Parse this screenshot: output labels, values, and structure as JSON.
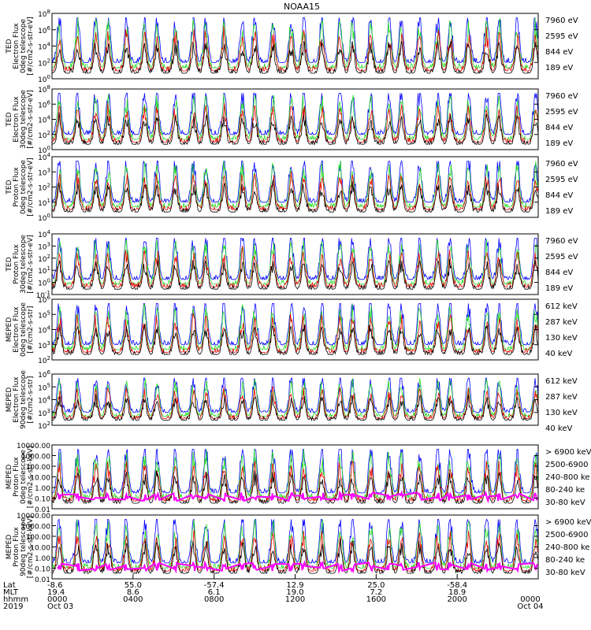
{
  "title": "NOAA15",
  "colors": {
    "black": "#000000",
    "red": "#ee0000",
    "green": "#22dd22",
    "blue": "#0000ff",
    "magenta": "#ff00ff"
  },
  "panels": [
    {
      "ylabel": [
        "TED",
        "Electron Flux",
        "0deg telescope",
        "[#/cm2-s-str-eV]"
      ],
      "yticks": [
        "10^8",
        "10^6",
        "10^4",
        "10^2",
        "10^0"
      ],
      "legend": [
        {
          "text": "7960 eV",
          "color": "black"
        },
        {
          "text": "2595 eV",
          "color": "red"
        },
        {
          "text": "844 eV",
          "color": "green"
        },
        {
          "text": "189 eV",
          "color": "blue"
        }
      ]
    },
    {
      "ylabel": [
        "TED",
        "Electron Flux",
        "30deg telescope",
        "[#/cm2-s-str-eV]"
      ],
      "yticks": [
        "10^8",
        "10^6",
        "10^4",
        "10^2",
        "10^0"
      ],
      "legend": [
        {
          "text": "7960 eV",
          "color": "black"
        },
        {
          "text": "2595 eV",
          "color": "red"
        },
        {
          "text": "844 eV",
          "color": "green"
        },
        {
          "text": "189 eV",
          "color": "blue"
        }
      ]
    },
    {
      "ylabel": [
        "TED",
        "Proton Flux",
        "0deg telescope",
        "[#/cm2-s-str-eV]"
      ],
      "yticks": [
        "10^4",
        "10^3",
        "10^2",
        "10^1",
        "10^0"
      ],
      "legend": [
        {
          "text": "7960 eV",
          "color": "black"
        },
        {
          "text": "2595 eV",
          "color": "red"
        },
        {
          "text": "844 eV",
          "color": "green"
        },
        {
          "text": "189 eV",
          "color": "blue"
        }
      ]
    },
    {
      "ylabel": [
        "TED",
        "Proton Flux",
        "30deg telescope",
        "[#/cm2-s-str-eV]"
      ],
      "yticks": [
        "10^4",
        "10^3",
        "10^2",
        "10^1",
        "10^0",
        "10^-1"
      ],
      "legend": [
        {
          "text": "7960 eV",
          "color": "black"
        },
        {
          "text": "2595 eV",
          "color": "red"
        },
        {
          "text": "844 eV",
          "color": "green"
        },
        {
          "text": "189 eV",
          "color": "blue"
        }
      ]
    },
    {
      "ylabel": [
        "MEPED",
        "Electron Flux",
        "0deg telescope",
        "[#/cm2-s-str]"
      ],
      "yticks": [
        "10^6",
        "10^5",
        "10^4",
        "10^3",
        "10^2"
      ],
      "legend": [
        {
          "text": "612 keV",
          "color": "black"
        },
        {
          "text": "287 keV",
          "color": "red"
        },
        {
          "text": "130 keV",
          "color": "green"
        },
        {
          "text": "40 keV",
          "color": "blue"
        }
      ]
    },
    {
      "ylabel": [
        "MEPED",
        "Electron Flux",
        "90deg telescope",
        "[#/cm2-s-str]"
      ],
      "yticks": [
        "10^6",
        "10^5",
        "10^4",
        "10^3",
        "10^2"
      ],
      "legend": [
        {
          "text": "612 keV",
          "color": "black"
        },
        {
          "text": "287 keV",
          "color": "red"
        },
        {
          "text": "130 keV",
          "color": "green"
        },
        {
          "text": "40 keV",
          "color": "blue"
        }
      ]
    },
    {
      "ylabel": [
        "MEPED",
        "Proton Flux",
        "0deg telescope",
        "[#/cm2-s-str-keV]"
      ],
      "yticks": [
        "10000.00",
        "1000.00",
        "100.00",
        "10.00",
        "1.00",
        "0.10",
        "0.01"
      ],
      "legend": [
        {
          "text": "> 6900 keV",
          "color": "magenta"
        },
        {
          "text": "2500-6900",
          "color": "black"
        },
        {
          "text": "240-800 ke",
          "color": "red"
        },
        {
          "text": "80-240 ke",
          "color": "green"
        },
        {
          "text": "30-80 keV",
          "color": "blue"
        }
      ]
    },
    {
      "ylabel": [
        "MEPED",
        "Proton Flux",
        "90deg telescope",
        "[#/cm2-s-str-keV]"
      ],
      "yticks": [
        "10000.00",
        "1000.00",
        "100.00",
        "10.00",
        "1.00",
        "0.10",
        "0.01"
      ],
      "legend": [
        {
          "text": "> 6900 keV",
          "color": "magenta"
        },
        {
          "text": "2500-6900",
          "color": "black"
        },
        {
          "text": "240-800 ke",
          "color": "red"
        },
        {
          "text": "80-240 ke",
          "color": "green"
        },
        {
          "text": "30-80 keV",
          "color": "blue"
        }
      ]
    }
  ],
  "x_axis": {
    "row_labels": [
      "Lat",
      "MLT",
      "hhmm",
      "2019"
    ],
    "ticks": [
      {
        "lat": "-8.6",
        "mlt": "19.4",
        "hhmm": "0000",
        "date": "Oct 03"
      },
      {
        "lat": "55.0",
        "mlt": "8.6",
        "hhmm": "0400",
        "date": ""
      },
      {
        "lat": "-57.4",
        "mlt": "6.1",
        "hhmm": "0800",
        "date": ""
      },
      {
        "lat": "12.9",
        "mlt": "19.0",
        "hhmm": "1200",
        "date": ""
      },
      {
        "lat": "25.0",
        "mlt": "7.2",
        "hhmm": "1600",
        "date": ""
      },
      {
        "lat": "-58.4",
        "mlt": "18.9",
        "hhmm": "2000",
        "date": ""
      },
      {
        "lat": "",
        "mlt": "",
        "hhmm": "0000",
        "date": "Oct 04"
      }
    ]
  },
  "chart_data": {
    "type": "line",
    "title": "NOAA15",
    "xlabel": "",
    "x_range": [
      "2019-10-03 00:00",
      "2019-10-04 00:00"
    ],
    "y_scale": "log",
    "grid": false,
    "legend_position": "right",
    "panels": [
      {
        "ylim": [
          1,
          100000000
        ],
        "series": [
          "7960 eV",
          "2595 eV",
          "844 eV",
          "189 eV"
        ]
      },
      {
        "ylim": [
          1,
          100000000
        ],
        "series": [
          "7960 eV",
          "2595 eV",
          "844 eV",
          "189 eV"
        ]
      },
      {
        "ylim": [
          1,
          10000
        ],
        "series": [
          "7960 eV",
          "2595 eV",
          "844 eV",
          "189 eV"
        ]
      },
      {
        "ylim": [
          0.1,
          10000
        ],
        "series": [
          "7960 eV",
          "2595 eV",
          "844 eV",
          "189 eV"
        ]
      },
      {
        "ylim": [
          100,
          1000000
        ],
        "series": [
          "612 keV",
          "287 keV",
          "130 keV",
          "40 keV"
        ]
      },
      {
        "ylim": [
          100,
          1000000
        ],
        "series": [
          "612 keV",
          "287 keV",
          "130 keV",
          "40 keV"
        ]
      },
      {
        "ylim": [
          0.01,
          10000
        ],
        "series": [
          "> 6900 keV",
          "2500-6900",
          "240-800 ke",
          "80-240 ke",
          "30-80 keV"
        ]
      },
      {
        "ylim": [
          0.01,
          10000
        ],
        "series": [
          "> 6900 keV",
          "2500-6900",
          "240-800 ke",
          "80-240 ke",
          "30-80 keV"
        ]
      }
    ]
  }
}
